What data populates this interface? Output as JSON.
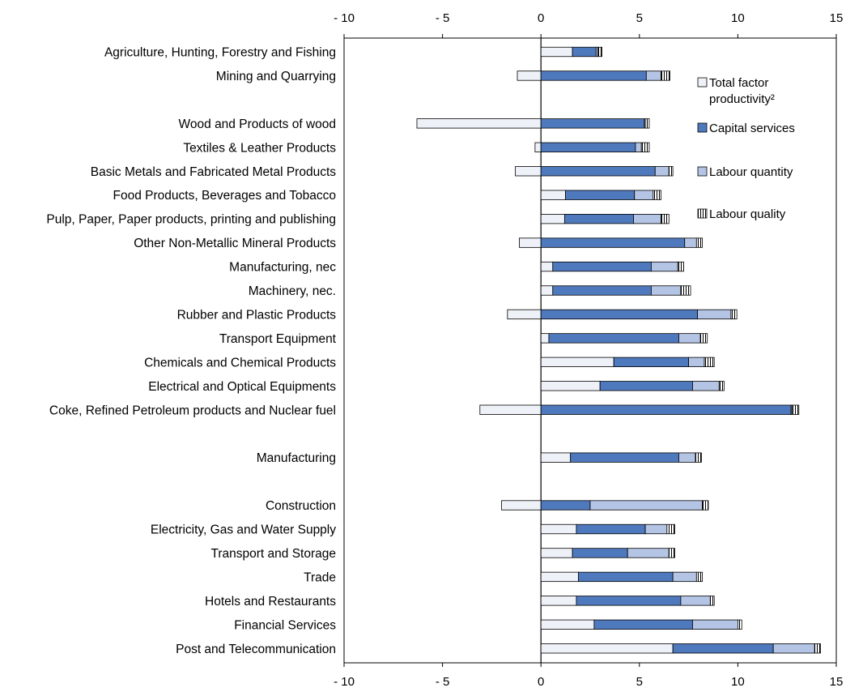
{
  "chart_data": {
    "type": "bar",
    "stacked": true,
    "orientation": "horizontal",
    "title": "",
    "xlabel": "",
    "ylabel": "",
    "xlim": [
      -10,
      15
    ],
    "xticks": [
      -10,
      -5,
      0,
      5,
      10,
      15
    ],
    "xtick_labels": [
      "- 10",
      "- 5",
      "0",
      "5",
      "10",
      "15"
    ],
    "axis_position": "top and bottom",
    "grid": false,
    "legend_position": "top-right, inside plot",
    "categories": [
      "Agriculture, Hunting, Forestry and Fishing",
      "Mining and Quarrying",
      "",
      "Wood and Products of wood",
      "Textiles & Leather Products",
      "Basic Metals and Fabricated Metal Products",
      "Food Products, Beverages and Tobacco",
      "Pulp, Paper, Paper products, printing and publishing",
      "Other Non-Metallic Mineral Products",
      "Manufacturing, nec",
      "Machinery, nec.",
      "Rubber and Plastic Products",
      "Transport Equipment",
      "Chemicals and Chemical Products",
      "Electrical and Optical Equipments",
      "Coke, Refined Petroleum products and Nuclear fuel",
      "",
      "Manufacturing",
      "",
      "Construction",
      "Electricity, Gas and Water Supply",
      "Transport and Storage",
      "Trade",
      "Hotels and Restaurants",
      "Financial Services",
      "Post and Telecommunication"
    ],
    "series": [
      {
        "name": "Total factor productivity²",
        "legend_lines": [
          "Total factor",
          "productivity²"
        ],
        "color": "#eef2f8",
        "pattern": "none",
        "values": [
          1.6,
          -1.2,
          null,
          -6.3,
          -0.3,
          -1.3,
          1.25,
          1.2,
          -1.1,
          0.6,
          0.6,
          -1.7,
          0.4,
          3.7,
          3.0,
          -3.1,
          null,
          1.5,
          null,
          -2.0,
          1.8,
          1.6,
          1.9,
          1.8,
          2.7,
          6.7
        ]
      },
      {
        "name": "Capital services",
        "color": "#4f79bd",
        "pattern": "none",
        "values": [
          1.2,
          5.35,
          null,
          5.25,
          4.8,
          5.8,
          3.5,
          3.5,
          7.3,
          5.0,
          5.0,
          7.95,
          6.6,
          3.8,
          4.7,
          12.7,
          null,
          5.5,
          null,
          2.5,
          3.5,
          2.8,
          4.8,
          5.3,
          5.0,
          5.1
        ]
      },
      {
        "name": "Labour quantity",
        "color": "#b4c4e4",
        "pattern": "none",
        "values": [
          0.1,
          0.75,
          null,
          0.05,
          0.3,
          0.7,
          0.95,
          1.4,
          0.6,
          1.35,
          1.5,
          1.7,
          1.1,
          0.8,
          1.35,
          0.05,
          null,
          0.85,
          null,
          5.7,
          1.1,
          2.1,
          1.2,
          1.5,
          2.3,
          2.1
        ]
      },
      {
        "name": "Labour quality",
        "color": "#ffffff",
        "pattern": "vertical-hatch",
        "values": [
          0.2,
          0.45,
          null,
          0.2,
          0.4,
          0.2,
          0.4,
          0.4,
          0.3,
          0.3,
          0.5,
          0.3,
          0.35,
          0.5,
          0.25,
          0.35,
          null,
          0.3,
          null,
          0.3,
          0.4,
          0.3,
          0.3,
          0.2,
          0.2,
          0.3
        ]
      }
    ]
  }
}
